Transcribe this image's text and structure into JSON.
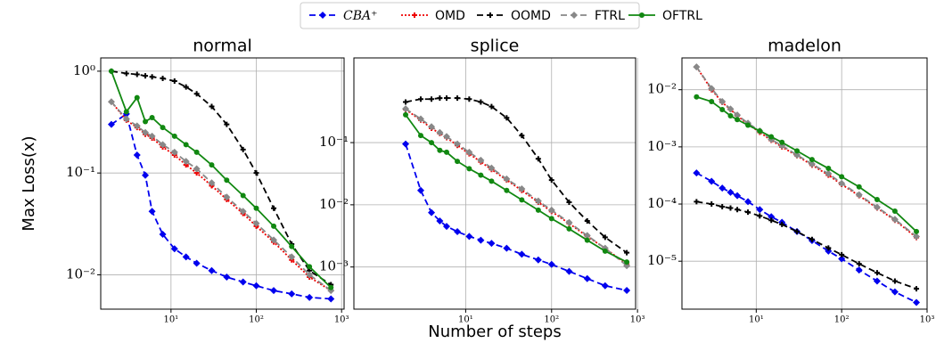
{
  "chart_data": [
    {
      "type": "line",
      "title": "normal",
      "y_label": "Max Loss(x)",
      "xscale": "log",
      "yscale": "log",
      "grid": true,
      "x": [
        2,
        3,
        4,
        5,
        6,
        8,
        11,
        15,
        20,
        30,
        45,
        70,
        100,
        160,
        260,
        420,
        750
      ],
      "xlim": [
        1.5,
        1070
      ],
      "ylim": [
        0.0046,
        1.35
      ],
      "xticks": [
        {
          "value": 10,
          "label": "10¹"
        },
        {
          "value": 100,
          "label": "10²"
        },
        {
          "value": 1000,
          "label": "10³"
        }
      ],
      "yticks": [
        {
          "value": 1,
          "label": "10⁰"
        },
        {
          "value": 0.1,
          "label": "10⁻¹"
        },
        {
          "value": 0.01,
          "label": "10⁻²"
        }
      ],
      "series": [
        {
          "name": "CBA⁺",
          "color": "#0000ee",
          "linestyle": "dashed",
          "marker": "diamond",
          "values": [
            0.3,
            0.38,
            0.15,
            0.095,
            0.042,
            0.025,
            0.018,
            0.015,
            0.013,
            0.011,
            0.0095,
            0.0085,
            0.0078,
            0.007,
            0.0065,
            0.006,
            0.0058
          ]
        },
        {
          "name": "OMD",
          "color": "#ee0000",
          "linestyle": "dotted",
          "marker": "plus",
          "values": [
            0.5,
            0.33,
            0.28,
            0.24,
            0.22,
            0.18,
            0.15,
            0.12,
            0.1,
            0.075,
            0.055,
            0.04,
            0.03,
            0.021,
            0.014,
            0.0095,
            0.007
          ]
        },
        {
          "name": "OOMD",
          "color": "#000000",
          "linestyle": "dashed",
          "marker": "plus",
          "values": [
            1.0,
            0.95,
            0.93,
            0.9,
            0.88,
            0.85,
            0.8,
            0.7,
            0.6,
            0.45,
            0.3,
            0.17,
            0.1,
            0.045,
            0.02,
            0.011,
            0.008
          ]
        },
        {
          "name": "FTRL",
          "color": "#888888",
          "linestyle": "dashed",
          "marker": "diamond",
          "values": [
            0.5,
            0.34,
            0.29,
            0.25,
            0.23,
            0.19,
            0.16,
            0.13,
            0.11,
            0.08,
            0.058,
            0.042,
            0.032,
            0.022,
            0.015,
            0.01,
            0.007
          ]
        },
        {
          "name": "OFTRL",
          "color": "#118811",
          "linestyle": "solid",
          "marker": "circle",
          "values": [
            1.0,
            0.4,
            0.55,
            0.32,
            0.35,
            0.28,
            0.23,
            0.19,
            0.16,
            0.12,
            0.085,
            0.06,
            0.045,
            0.03,
            0.019,
            0.012,
            0.0075
          ]
        }
      ]
    },
    {
      "type": "line",
      "title": "splice",
      "x_label": "Number of steps",
      "xscale": "log",
      "yscale": "log",
      "grid": true,
      "x": [
        2,
        3,
        4,
        5,
        6,
        8,
        11,
        15,
        20,
        30,
        45,
        70,
        100,
        160,
        260,
        420,
        750
      ],
      "xlim": [
        0.5,
        950
      ],
      "ylim": [
        0.00021,
        2.3
      ],
      "xticks": [
        {
          "value": 10,
          "label": "10¹"
        },
        {
          "value": 100,
          "label": "10²"
        },
        {
          "value": 1000,
          "label": "10³"
        }
      ],
      "yticks": [
        {
          "value": 0.1,
          "label": "10⁻¹"
        },
        {
          "value": 0.01,
          "label": "10⁻²"
        },
        {
          "value": 0.001,
          "label": "10⁻³"
        }
      ],
      "series": [
        {
          "name": "CBA⁺",
          "color": "#0000ee",
          "linestyle": "dashed",
          "marker": "diamond",
          "values": [
            0.095,
            0.017,
            0.0075,
            0.0055,
            0.0045,
            0.0037,
            0.0031,
            0.0027,
            0.0024,
            0.002,
            0.0016,
            0.0013,
            0.0011,
            0.00085,
            0.00065,
            0.0005,
            0.00042
          ]
        },
        {
          "name": "OMD",
          "color": "#ee0000",
          "linestyle": "dotted",
          "marker": "plus",
          "values": [
            0.34,
            0.23,
            0.17,
            0.14,
            0.12,
            0.09,
            0.066,
            0.049,
            0.037,
            0.025,
            0.017,
            0.011,
            0.0078,
            0.005,
            0.0031,
            0.002,
            0.0011
          ]
        },
        {
          "name": "OOMD",
          "color": "#000000",
          "linestyle": "dashed",
          "marker": "plus",
          "values": [
            0.45,
            0.5,
            0.5,
            0.52,
            0.52,
            0.52,
            0.5,
            0.45,
            0.38,
            0.25,
            0.13,
            0.055,
            0.025,
            0.011,
            0.0055,
            0.003,
            0.0017
          ]
        },
        {
          "name": "FTRL",
          "color": "#888888",
          "linestyle": "dashed",
          "marker": "diamond",
          "values": [
            0.35,
            0.24,
            0.18,
            0.145,
            0.125,
            0.095,
            0.07,
            0.052,
            0.039,
            0.026,
            0.018,
            0.0115,
            0.0082,
            0.0052,
            0.0032,
            0.002,
            0.00105
          ]
        },
        {
          "name": "OFTRL",
          "color": "#118811",
          "linestyle": "solid",
          "marker": "circle",
          "values": [
            0.28,
            0.13,
            0.1,
            0.075,
            0.07,
            0.05,
            0.038,
            0.03,
            0.024,
            0.017,
            0.012,
            0.0082,
            0.006,
            0.0041,
            0.0027,
            0.0018,
            0.0012
          ]
        }
      ]
    },
    {
      "type": "line",
      "title": "madelon",
      "xscale": "log",
      "yscale": "log",
      "grid": true,
      "x": [
        2,
        3,
        4,
        5,
        6,
        8,
        11,
        15,
        20,
        30,
        45,
        70,
        100,
        160,
        260,
        420,
        750
      ],
      "xlim": [
        1.35,
        1000
      ],
      "ylim": [
        1.45e-06,
        0.036
      ],
      "xticks": [
        {
          "value": 10,
          "label": "10¹"
        },
        {
          "value": 100,
          "label": "10²"
        },
        {
          "value": 1000,
          "label": "10³"
        }
      ],
      "yticks": [
        {
          "value": 0.01,
          "label": "10⁻²"
        },
        {
          "value": 0.001,
          "label": "10⁻³"
        },
        {
          "value": 0.0001,
          "label": "10⁻⁴"
        },
        {
          "value": 1e-05,
          "label": "10⁻⁵"
        }
      ],
      "series": [
        {
          "name": "CBA⁺",
          "color": "#0000ee",
          "linestyle": "dashed",
          "marker": "diamond",
          "values": [
            0.00035,
            0.00025,
            0.00019,
            0.00016,
            0.00014,
            0.00011,
            8e-05,
            6e-05,
            4.8e-05,
            3.3e-05,
            2.3e-05,
            1.5e-05,
            1.1e-05,
            7e-06,
            4.5e-06,
            2.9e-06,
            1.9e-06
          ]
        },
        {
          "name": "OMD",
          "color": "#ee0000",
          "linestyle": "dotted",
          "marker": "plus",
          "values": [
            0.025,
            0.01,
            0.006,
            0.0045,
            0.0035,
            0.0025,
            0.0018,
            0.0013,
            0.001,
            0.0007,
            0.00048,
            0.00032,
            0.00022,
            0.00014,
            8.5e-05,
            5.2e-05,
            2.6e-05
          ]
        },
        {
          "name": "OOMD",
          "color": "#000000",
          "linestyle": "dashed",
          "marker": "plus",
          "values": [
            0.00011,
            0.0001,
            9e-05,
            8.5e-05,
            8e-05,
            7.2e-05,
            6.2e-05,
            5.2e-05,
            4.4e-05,
            3.3e-05,
            2.4e-05,
            1.7e-05,
            1.3e-05,
            9e-06,
            6.3e-06,
            4.5e-06,
            3.3e-06
          ]
        },
        {
          "name": "FTRL",
          "color": "#888888",
          "linestyle": "dashed",
          "marker": "diamond",
          "values": [
            0.025,
            0.0105,
            0.0062,
            0.0046,
            0.0036,
            0.0026,
            0.0019,
            0.00135,
            0.00105,
            0.00072,
            0.0005,
            0.00034,
            0.00023,
            0.000145,
            8.8e-05,
            5.4e-05,
            2.7e-05
          ]
        },
        {
          "name": "OFTRL",
          "color": "#118811",
          "linestyle": "solid",
          "marker": "circle",
          "values": [
            0.0075,
            0.0062,
            0.0045,
            0.0035,
            0.003,
            0.0024,
            0.0019,
            0.0015,
            0.0012,
            0.00085,
            0.0006,
            0.00042,
            0.0003,
            0.0002,
            0.00012,
            7.5e-05,
            3.3e-05
          ]
        }
      ]
    }
  ]
}
